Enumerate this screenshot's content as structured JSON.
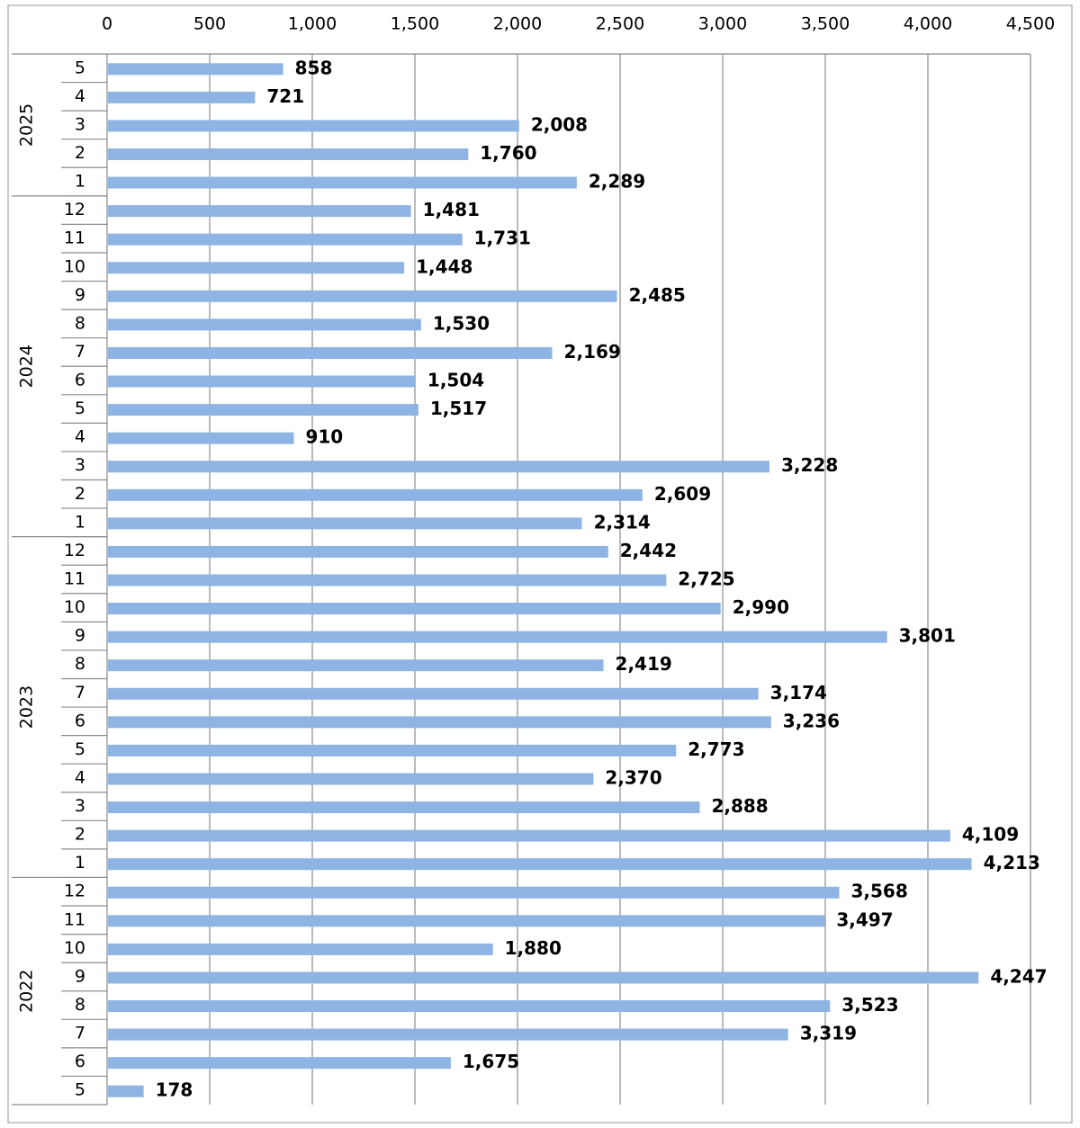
{
  "chart_data": {
    "type": "bar",
    "orientation": "horizontal",
    "title": "",
    "xlabel": "",
    "ylabel": "",
    "xlim": [
      0,
      4500
    ],
    "x_ticks": [
      0,
      500,
      1000,
      1500,
      2000,
      2500,
      3000,
      3500,
      4000,
      4500
    ],
    "x_tick_labels": [
      "0",
      "500",
      "1,000",
      "1,500",
      "2,000",
      "2,500",
      "3,000",
      "3,500",
      "4,000",
      "4,500"
    ],
    "x_axis_position": "top",
    "grid": true,
    "bar_color": "#8EB4E3",
    "groups": [
      {
        "year": "2025",
        "months": [
          "5",
          "4",
          "3",
          "2",
          "1"
        ]
      },
      {
        "year": "2024",
        "months": [
          "12",
          "11",
          "10",
          "9",
          "8",
          "7",
          "6",
          "5",
          "4",
          "3",
          "2",
          "1"
        ]
      },
      {
        "year": "2023",
        "months": [
          "12",
          "11",
          "10",
          "9",
          "8",
          "7",
          "6",
          "5",
          "4",
          "3",
          "2",
          "1"
        ]
      },
      {
        "year": "2022",
        "months": [
          "12",
          "11",
          "10",
          "9",
          "8",
          "7",
          "6",
          "5"
        ]
      }
    ],
    "values": [
      858,
      721,
      2008,
      1760,
      2289,
      1481,
      1731,
      1448,
      2485,
      1530,
      2169,
      1504,
      1517,
      910,
      3228,
      2609,
      2314,
      2442,
      2725,
      2990,
      3801,
      2419,
      3174,
      3236,
      2773,
      2370,
      2888,
      4109,
      4213,
      3568,
      3497,
      1880,
      4247,
      3523,
      3319,
      1675,
      178
    ],
    "value_labels": [
      "858",
      "721",
      "2,008",
      "1,760",
      "2,289",
      "1,481",
      "1,731",
      "1,448",
      "2,485",
      "1,530",
      "2,169",
      "1,504",
      "1,517",
      "910",
      "3,228",
      "2,609",
      "2,314",
      "2,442",
      "2,725",
      "2,990",
      "3,801",
      "2,419",
      "3,174",
      "3,236",
      "2,773",
      "2,370",
      "2,888",
      "4,109",
      "4,213",
      "3,568",
      "3,497",
      "1,880",
      "4,247",
      "3,523",
      "3,319",
      "1,675",
      "178"
    ]
  }
}
